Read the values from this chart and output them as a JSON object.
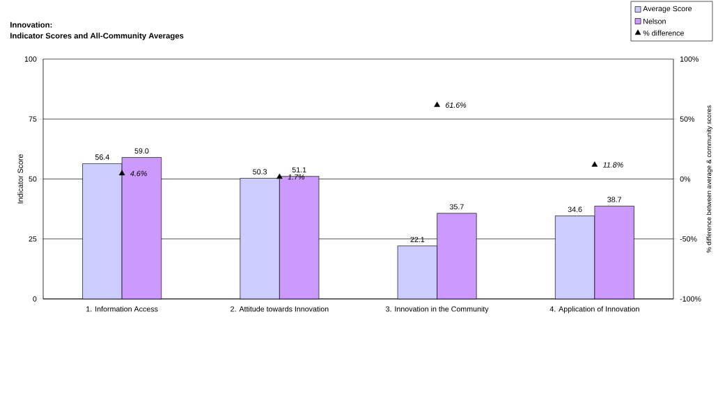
{
  "chart_data": {
    "type": "bar",
    "title": "Innovation:",
    "subtitle": "Indicator Scores and All-Community Averages",
    "ylabel": "Indicator Score",
    "y2label": "% difference between average & community scores",
    "categories": [
      "1. Information Access",
      "2. Attitude towards Innovation",
      "3. Innovation in the Community",
      "4. Application of Innovation"
    ],
    "series": [
      {
        "name": "Average Score",
        "color": "#ccccff",
        "values": [
          56.4,
          50.3,
          22.1,
          34.6
        ],
        "value_labels": [
          "56.4",
          "50.3",
          "22.1",
          "34.6"
        ]
      },
      {
        "name": "Nelson",
        "color": "#cc99ff",
        "values": [
          59.0,
          51.1,
          35.7,
          38.7
        ],
        "value_labels": [
          "59.0",
          "51.1",
          "35.7",
          "38.7"
        ]
      },
      {
        "name": "% difference",
        "type": "scatter",
        "axis": "y2",
        "marker": "triangle",
        "color": "#000000",
        "x": [
          "1. Information Access",
          "2. Attitude towards Innovation",
          "3. Innovation in the Community",
          "4. Application of Innovation"
        ],
        "values": [
          4.6,
          1.7,
          61.6,
          11.8
        ],
        "value_labels": [
          "4.6%",
          "1.7%",
          "61.6%",
          "11.8%"
        ]
      }
    ],
    "ylim": [
      0,
      100
    ],
    "yticks": [
      0,
      25,
      50,
      75,
      100
    ],
    "y2lim": [
      -100,
      100
    ],
    "y2ticks": [
      {
        "value": -100,
        "label": "-100%"
      },
      {
        "value": -50,
        "label": "-50%"
      },
      {
        "value": 0,
        "label": "0%"
      },
      {
        "value": 50,
        "label": "50%"
      },
      {
        "value": 100,
        "label": "100%"
      }
    ],
    "grid": "y",
    "legend": "top right"
  }
}
